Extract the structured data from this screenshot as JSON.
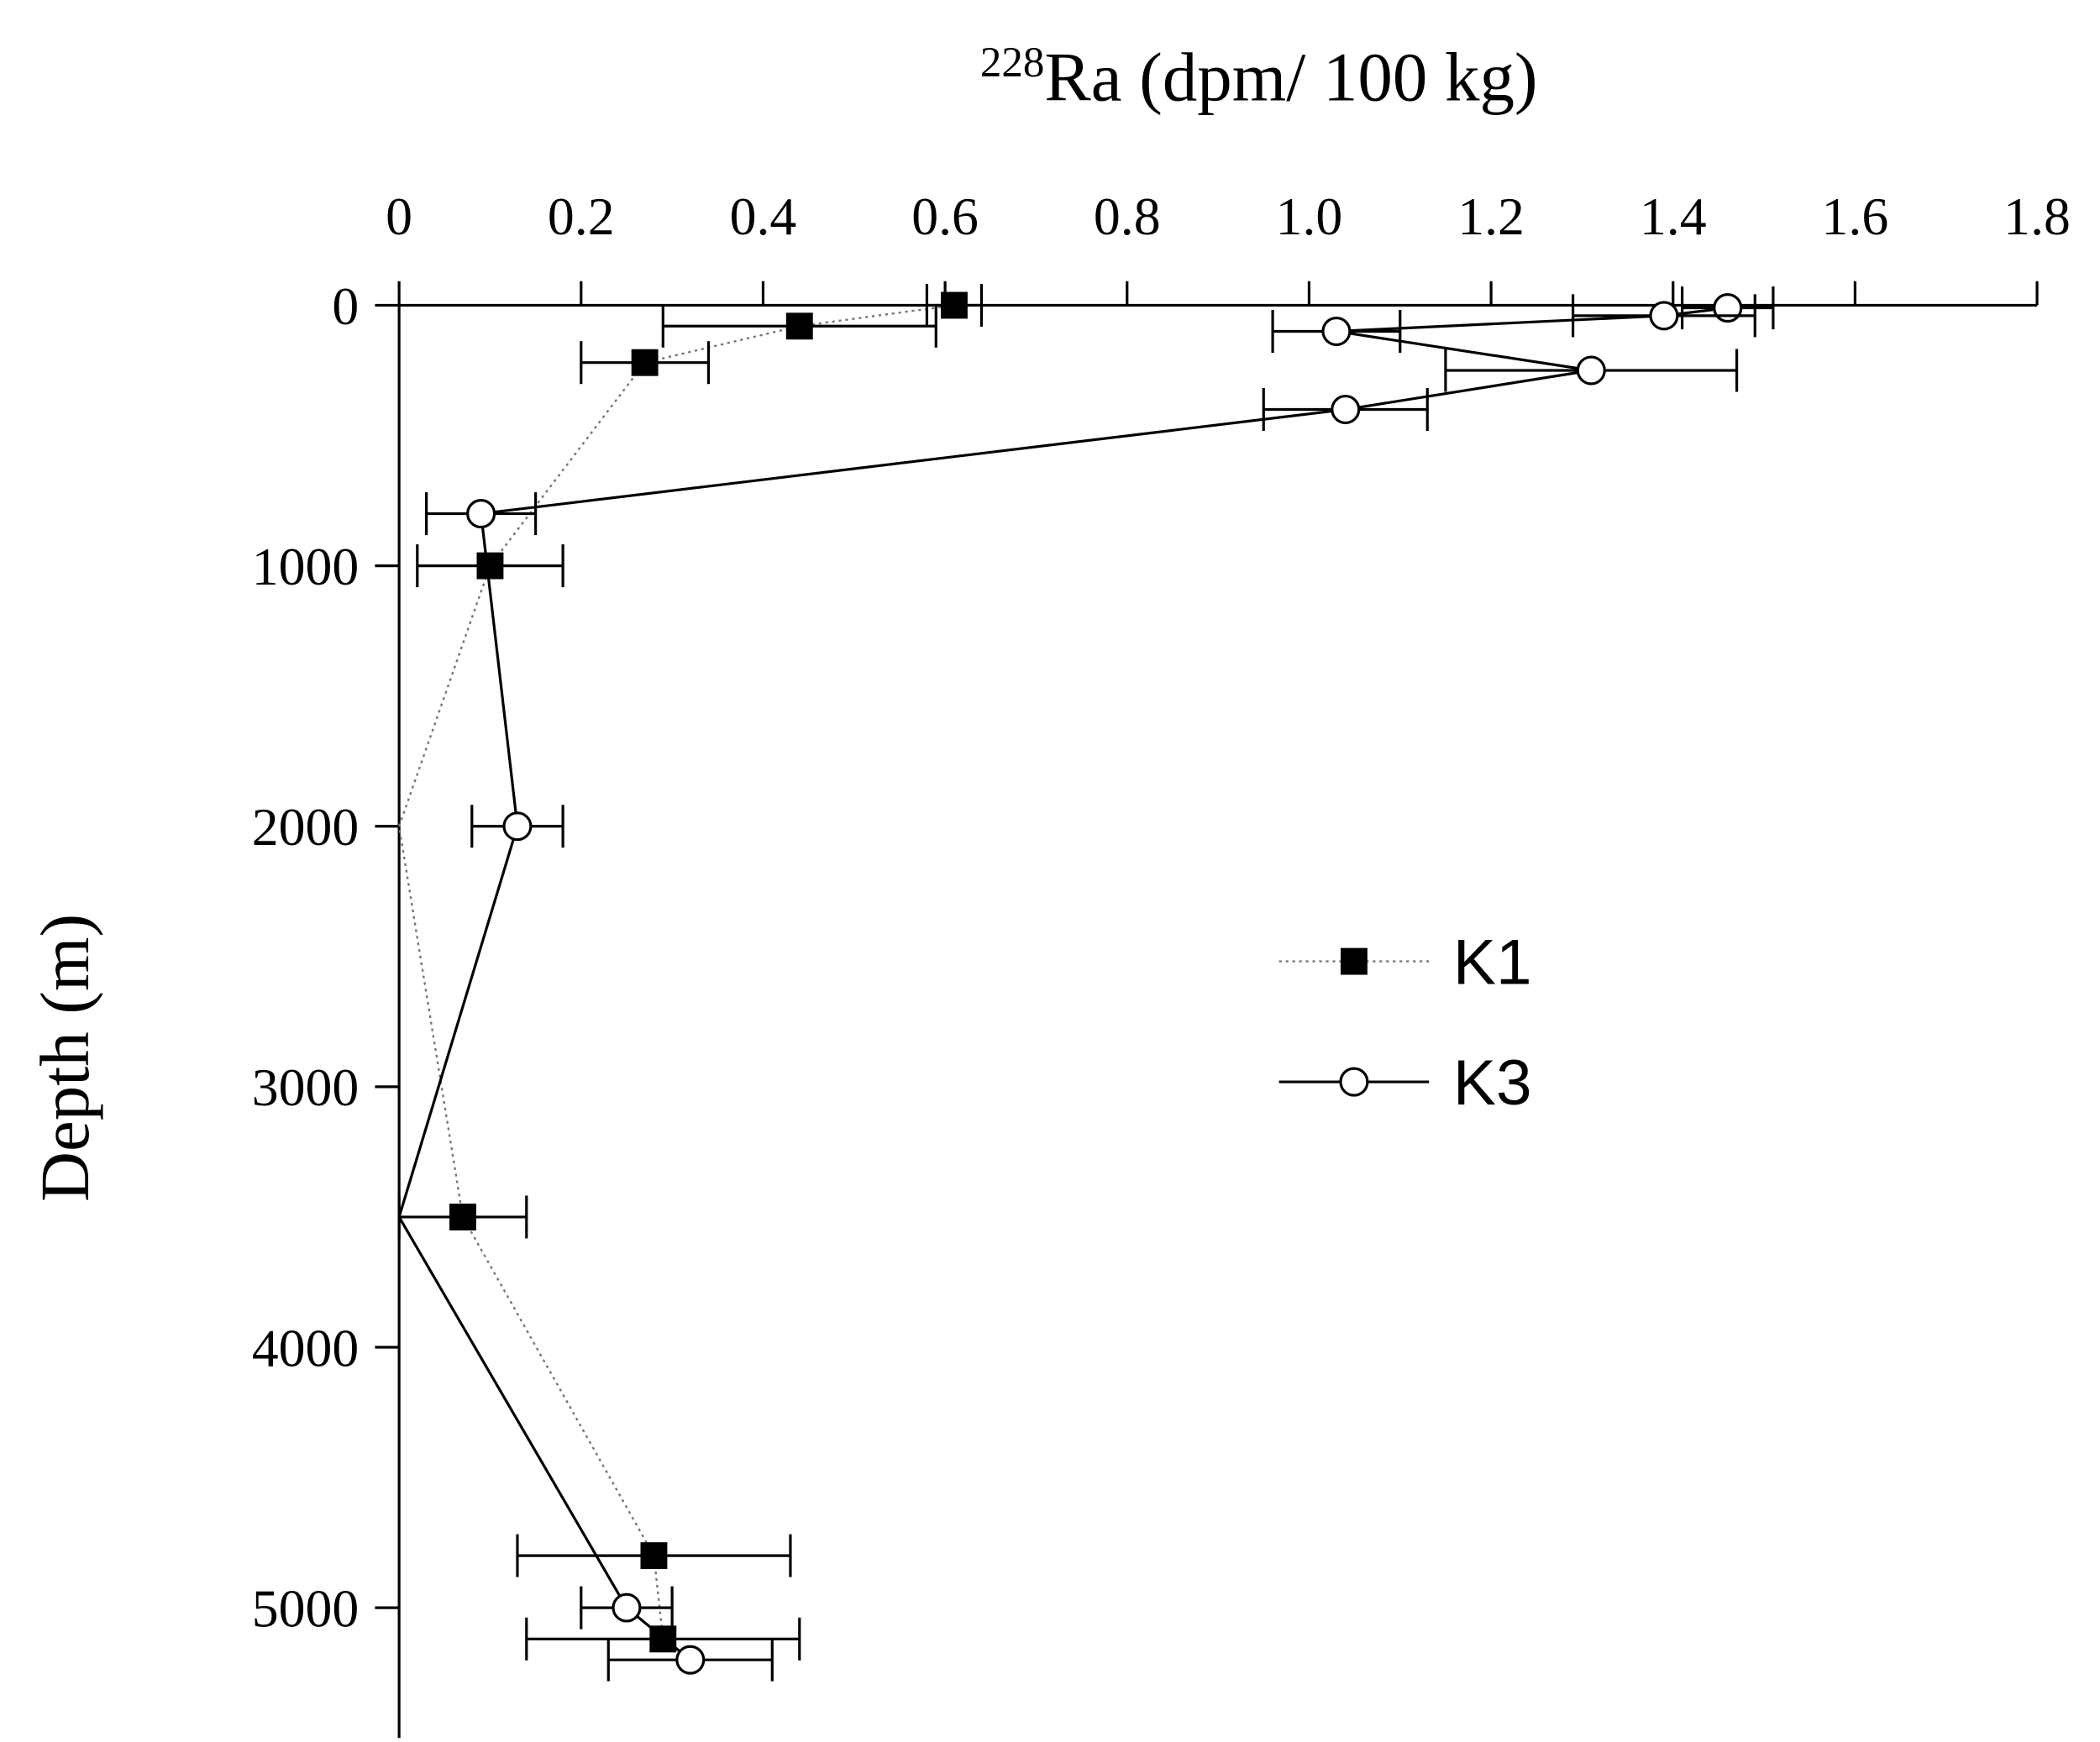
{
  "chart_data": {
    "type": "scatter",
    "xlabel_superscript": "228",
    "xlabel": "Ra (dpm/ 100 kg)",
    "ylabel": "Depth (m)",
    "xlim": [
      0,
      1.8
    ],
    "xticks": [
      0,
      0.2,
      0.4,
      0.6,
      0.8,
      {
        "value": 1,
        "label": "1.0"
      },
      1.2,
      1.4,
      1.6,
      1.8
    ],
    "ylim": [
      0,
      5500
    ],
    "yticks": [
      0,
      1000,
      2000,
      3000,
      4000,
      5000
    ],
    "y_inverted": true,
    "legend": "right",
    "series": [
      {
        "name": "K1",
        "color": "#000000",
        "line": "dotted",
        "marker": "square",
        "x": [
          0.61,
          0.44,
          0.27,
          0.1,
          0,
          0.07,
          0.28,
          0.29
        ],
        "y": [
          0,
          80,
          220,
          1000,
          2000,
          3500,
          4800,
          5120
        ],
        "xerr": [
          0.03,
          0.15,
          0.07,
          0.08,
          null,
          0.07,
          0.15,
          0.15
        ]
      },
      {
        "name": "K3",
        "color": "#000000",
        "line": "solid",
        "marker": "circle",
        "x": [
          1.46,
          1.39,
          1.03,
          1.31,
          1.04,
          0.09,
          0.13,
          0,
          0.25,
          0.32
        ],
        "y": [
          10,
          40,
          100,
          250,
          400,
          800,
          2000,
          3500,
          5000,
          5200
        ],
        "xerr": [
          0.05,
          0.1,
          0.07,
          0.16,
          0.09,
          0.06,
          0.05,
          null,
          0.05,
          0.09
        ]
      }
    ]
  }
}
